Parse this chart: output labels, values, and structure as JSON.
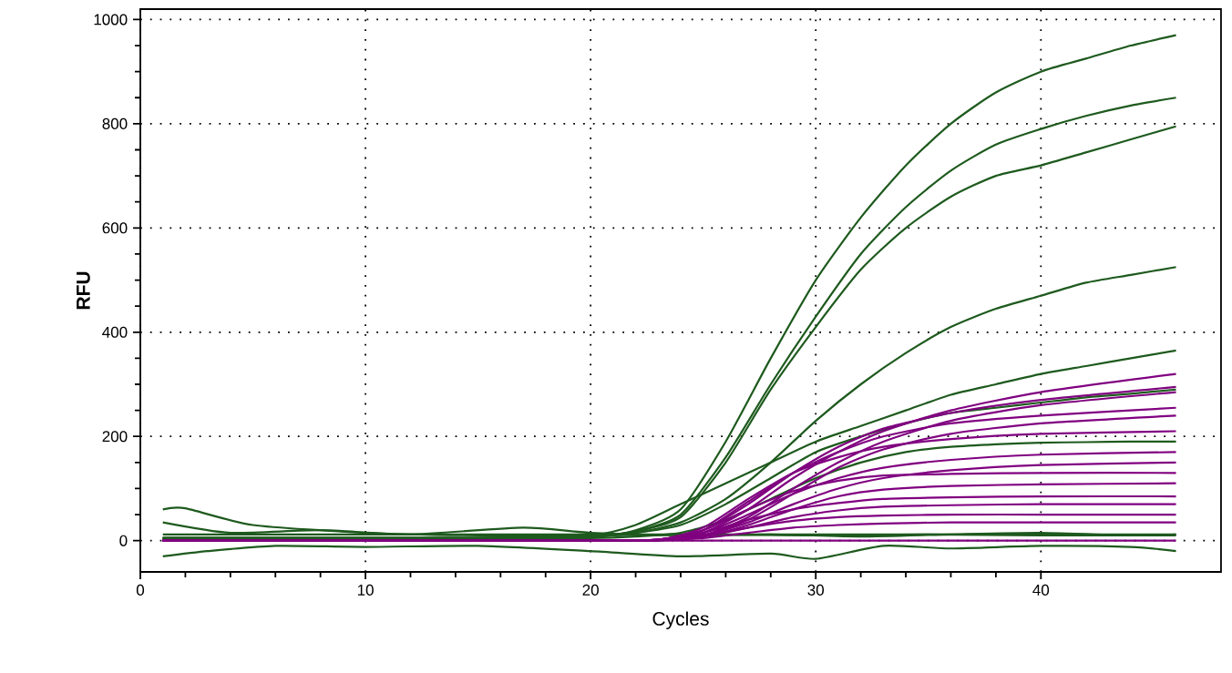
{
  "chart_data": {
    "type": "line",
    "xlabel": "Cycles",
    "ylabel": "RFU",
    "xlim": [
      0,
      48
    ],
    "ylim": [
      -60,
      1020
    ],
    "xticks": [
      0,
      10,
      20,
      30,
      40
    ],
    "yticks": [
      0,
      200,
      400,
      600,
      800,
      1000
    ],
    "grid": true,
    "series": [
      {
        "color": "#1e5a1e",
        "x": [
          1,
          5,
          10,
          15,
          20,
          22,
          24,
          26,
          28,
          30,
          32,
          34,
          36,
          38,
          40,
          42,
          44,
          46
        ],
        "values": [
          5,
          5,
          5,
          5,
          8,
          20,
          60,
          190,
          350,
          500,
          620,
          720,
          800,
          860,
          900,
          925,
          950,
          970
        ]
      },
      {
        "color": "#1e5a1e",
        "x": [
          1,
          5,
          10,
          15,
          20,
          22,
          24,
          26,
          28,
          30,
          32,
          34,
          36,
          38,
          40,
          42,
          44,
          46
        ],
        "values": [
          5,
          5,
          5,
          5,
          8,
          18,
          50,
          160,
          300,
          430,
          550,
          640,
          710,
          760,
          790,
          815,
          835,
          850
        ]
      },
      {
        "color": "#1e5a1e",
        "x": [
          1,
          5,
          10,
          15,
          20,
          22,
          24,
          26,
          28,
          30,
          32,
          34,
          36,
          38,
          40,
          42,
          44,
          46
        ],
        "values": [
          5,
          5,
          5,
          5,
          8,
          18,
          45,
          150,
          290,
          410,
          520,
          600,
          660,
          700,
          720,
          745,
          770,
          795
        ]
      },
      {
        "color": "#1e5a1e",
        "x": [
          1,
          5,
          10,
          15,
          20,
          22,
          24,
          26,
          28,
          30,
          32,
          34,
          36,
          38,
          40,
          42,
          44,
          46
        ],
        "values": [
          5,
          5,
          5,
          5,
          8,
          15,
          35,
          80,
          150,
          230,
          300,
          360,
          410,
          445,
          470,
          495,
          510,
          525
        ]
      },
      {
        "color": "#1e5a1e",
        "x": [
          1,
          5,
          10,
          15,
          20,
          22,
          24,
          26,
          28,
          30,
          32,
          34,
          36,
          38,
          40,
          42,
          44,
          46
        ],
        "values": [
          5,
          5,
          5,
          5,
          10,
          30,
          70,
          110,
          150,
          190,
          220,
          250,
          280,
          300,
          320,
          335,
          350,
          365
        ]
      },
      {
        "color": "#1e5a1e",
        "x": [
          1,
          5,
          10,
          15,
          20,
          22,
          24,
          26,
          28,
          30,
          32,
          34,
          36,
          38,
          40,
          42,
          44,
          46
        ],
        "values": [
          5,
          5,
          5,
          5,
          8,
          15,
          30,
          70,
          120,
          170,
          200,
          225,
          245,
          255,
          265,
          275,
          282,
          290
        ]
      },
      {
        "color": "#1e5a1e",
        "x": [
          1,
          5,
          10,
          15,
          20,
          22,
          24,
          26,
          28,
          30,
          32,
          34,
          36,
          38,
          40,
          42,
          44,
          46
        ],
        "values": [
          5,
          5,
          5,
          5,
          5,
          8,
          15,
          40,
          80,
          120,
          150,
          170,
          180,
          185,
          188,
          189,
          190,
          190
        ]
      },
      {
        "color": "#1e5a1e",
        "x": [
          1,
          2,
          5,
          10,
          15,
          20,
          25,
          30,
          35,
          40,
          46
        ],
        "values": [
          60,
          62,
          30,
          15,
          10,
          10,
          12,
          10,
          12,
          10,
          10
        ]
      },
      {
        "color": "#1e5a1e",
        "x": [
          1,
          3,
          6,
          10,
          15,
          20,
          24,
          28,
          30,
          33,
          36,
          40,
          44,
          46
        ],
        "values": [
          -30,
          -20,
          -10,
          -12,
          -10,
          -20,
          -30,
          -25,
          -35,
          -10,
          -15,
          -10,
          -12,
          -20
        ]
      },
      {
        "color": "#1e5a1e",
        "x": [
          1,
          4,
          8,
          12,
          17,
          20,
          24,
          28,
          32,
          36,
          40,
          44,
          46
        ],
        "values": [
          35,
          15,
          20,
          12,
          25,
          15,
          10,
          12,
          8,
          12,
          15,
          10,
          12
        ]
      },
      {
        "color": "#1e5a1e",
        "x": [
          1,
          46
        ],
        "values": [
          12,
          12
        ]
      },
      {
        "color": "#800080",
        "x": [
          1,
          10,
          20,
          23,
          25,
          27,
          29,
          31,
          33,
          36,
          40,
          46
        ],
        "values": [
          0,
          0,
          0,
          2,
          15,
          60,
          120,
          170,
          210,
          250,
          285,
          320
        ]
      },
      {
        "color": "#800080",
        "x": [
          1,
          10,
          20,
          23,
          25,
          27,
          29,
          31,
          33,
          36,
          40,
          46
        ],
        "values": [
          0,
          0,
          0,
          2,
          20,
          70,
          130,
          180,
          215,
          245,
          270,
          295
        ]
      },
      {
        "color": "#800080",
        "x": [
          1,
          10,
          20,
          23,
          25,
          27,
          29,
          31,
          33,
          36,
          40,
          46
        ],
        "values": [
          0,
          0,
          0,
          1,
          10,
          45,
          100,
          150,
          190,
          230,
          260,
          285
        ]
      },
      {
        "color": "#800080",
        "x": [
          1,
          10,
          20,
          23,
          25,
          27,
          29,
          31,
          33,
          36,
          40,
          46
        ],
        "values": [
          0,
          0,
          0,
          2,
          20,
          75,
          130,
          170,
          200,
          225,
          240,
          255
        ]
      },
      {
        "color": "#800080",
        "x": [
          1,
          10,
          20,
          23,
          25,
          27,
          29,
          31,
          33,
          36,
          40,
          46
        ],
        "values": [
          0,
          0,
          0,
          1,
          10,
          40,
          90,
          140,
          175,
          205,
          225,
          240
        ]
      },
      {
        "color": "#800080",
        "x": [
          1,
          10,
          20,
          23,
          25,
          27,
          29,
          31,
          33,
          36,
          40,
          46
        ],
        "values": [
          0,
          0,
          0,
          2,
          25,
          80,
          130,
          160,
          180,
          195,
          205,
          210
        ]
      },
      {
        "color": "#800080",
        "x": [
          1,
          10,
          20,
          23,
          25,
          27,
          29,
          31,
          33,
          36,
          40,
          46
        ],
        "values": [
          0,
          0,
          0,
          2,
          15,
          50,
          90,
          120,
          140,
          155,
          165,
          170
        ]
      },
      {
        "color": "#800080",
        "x": [
          1,
          10,
          20,
          23,
          25,
          27,
          29,
          31,
          33,
          36,
          40,
          46
        ],
        "values": [
          0,
          0,
          0,
          1,
          10,
          35,
          70,
          100,
          120,
          135,
          145,
          150
        ]
      },
      {
        "color": "#800080",
        "x": [
          1,
          10,
          20,
          23,
          25,
          27,
          29,
          31,
          33,
          36,
          40,
          46
        ],
        "values": [
          0,
          0,
          0,
          2,
          20,
          60,
          95,
          115,
          125,
          128,
          130,
          130
        ]
      },
      {
        "color": "#800080",
        "x": [
          1,
          10,
          20,
          23,
          25,
          27,
          29,
          31,
          33,
          36,
          40,
          46
        ],
        "values": [
          0,
          0,
          0,
          1,
          8,
          30,
          60,
          85,
          98,
          105,
          108,
          110
        ]
      },
      {
        "color": "#800080",
        "x": [
          1,
          10,
          20,
          23,
          25,
          27,
          29,
          31,
          33,
          36,
          40,
          46
        ],
        "values": [
          0,
          0,
          0,
          2,
          15,
          40,
          60,
          72,
          80,
          83,
          85,
          85
        ]
      },
      {
        "color": "#800080",
        "x": [
          1,
          10,
          20,
          23,
          25,
          27,
          29,
          31,
          33,
          36,
          40,
          46
        ],
        "values": [
          0,
          0,
          0,
          1,
          8,
          25,
          45,
          58,
          65,
          68,
          70,
          70
        ]
      },
      {
        "color": "#800080",
        "x": [
          1,
          10,
          20,
          23,
          25,
          27,
          29,
          31,
          33,
          36,
          40,
          46
        ],
        "values": [
          0,
          0,
          0,
          1,
          10,
          25,
          38,
          45,
          48,
          50,
          50,
          50
        ]
      },
      {
        "color": "#800080",
        "x": [
          1,
          10,
          20,
          23,
          25,
          27,
          29,
          31,
          33,
          36,
          40,
          46
        ],
        "values": [
          0,
          0,
          0,
          1,
          5,
          15,
          25,
          30,
          33,
          35,
          35,
          35
        ]
      },
      {
        "color": "#800080",
        "x": [
          1,
          46
        ],
        "values": [
          0,
          0
        ]
      }
    ]
  }
}
